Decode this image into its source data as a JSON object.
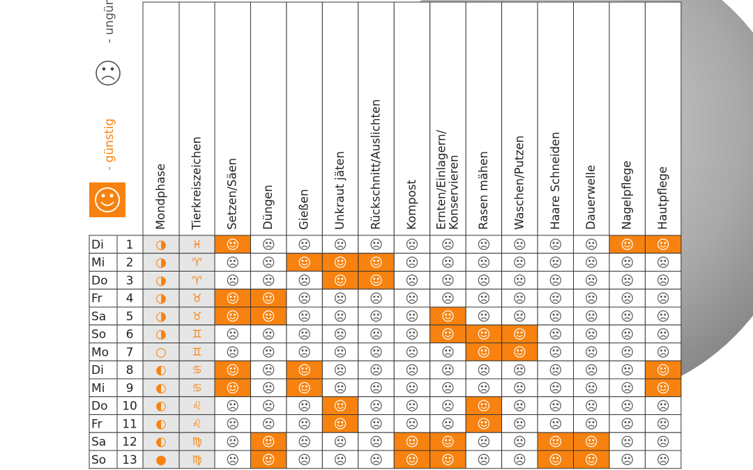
{
  "legend": {
    "favorable": "- günstig",
    "unfavorable": "- ungünstig"
  },
  "headers": [
    "Mondphase",
    "Tierkreiszeichen",
    "Setzen/Säen",
    "Düngen",
    "Gießen",
    "Unkraut jäten",
    "Rückschnitt/Auslichten",
    "Kompost",
    "Ernten/Einlagern/\nKonservieren",
    "Rasen mähen",
    "Waschen/Putzen",
    "Haare Schneiden",
    "Dauerwelle",
    "Nagelpflege",
    "Hautpflege"
  ],
  "rows": [
    {
      "day": "Di",
      "date": "1",
      "moon": "◑",
      "sign": "♓",
      "favorable": [
        true,
        false,
        false,
        false,
        false,
        false,
        false,
        false,
        false,
        false,
        false,
        true,
        true
      ]
    },
    {
      "day": "Mi",
      "date": "2",
      "moon": "◑",
      "sign": "♈",
      "favorable": [
        false,
        false,
        true,
        true,
        true,
        false,
        false,
        false,
        false,
        false,
        false,
        false,
        false
      ]
    },
    {
      "day": "Do",
      "date": "3",
      "moon": "◑",
      "sign": "♈",
      "favorable": [
        false,
        false,
        false,
        true,
        true,
        false,
        false,
        false,
        false,
        false,
        false,
        false,
        false
      ]
    },
    {
      "day": "Fr",
      "date": "4",
      "moon": "◑",
      "sign": "♉",
      "favorable": [
        true,
        true,
        false,
        false,
        false,
        false,
        false,
        false,
        false,
        false,
        false,
        false,
        false
      ]
    },
    {
      "day": "Sa",
      "date": "5",
      "moon": "◑",
      "sign": "♉",
      "favorable": [
        true,
        true,
        false,
        false,
        false,
        false,
        true,
        false,
        false,
        false,
        false,
        false,
        false
      ]
    },
    {
      "day": "So",
      "date": "6",
      "moon": "◑",
      "sign": "♊",
      "favorable": [
        false,
        false,
        false,
        false,
        false,
        false,
        true,
        true,
        true,
        false,
        false,
        false,
        false
      ]
    },
    {
      "day": "Mo",
      "date": "7",
      "moon": "○",
      "sign": "♊",
      "favorable": [
        false,
        false,
        false,
        false,
        false,
        false,
        false,
        true,
        true,
        false,
        false,
        false,
        false
      ]
    },
    {
      "day": "Di",
      "date": "8",
      "moon": "◐",
      "sign": "♋",
      "favorable": [
        true,
        false,
        true,
        false,
        false,
        false,
        false,
        false,
        false,
        false,
        false,
        false,
        true
      ]
    },
    {
      "day": "Mi",
      "date": "9",
      "moon": "◐",
      "sign": "♋",
      "favorable": [
        true,
        false,
        true,
        false,
        false,
        false,
        false,
        false,
        false,
        false,
        false,
        false,
        true
      ]
    },
    {
      "day": "Do",
      "date": "10",
      "moon": "◐",
      "sign": "♌",
      "favorable": [
        false,
        false,
        false,
        true,
        false,
        false,
        false,
        true,
        false,
        false,
        false,
        false,
        false
      ]
    },
    {
      "day": "Fr",
      "date": "11",
      "moon": "◐",
      "sign": "♌",
      "favorable": [
        false,
        false,
        false,
        true,
        false,
        false,
        false,
        true,
        false,
        false,
        false,
        false,
        false
      ]
    },
    {
      "day": "Sa",
      "date": "12",
      "moon": "◐",
      "sign": "♍",
      "favorable": [
        false,
        true,
        false,
        false,
        false,
        true,
        true,
        false,
        false,
        true,
        true,
        false,
        false
      ]
    },
    {
      "day": "So",
      "date": "13",
      "moon": "●",
      "sign": "♍",
      "favorable": [
        false,
        true,
        false,
        false,
        false,
        true,
        true,
        false,
        false,
        true,
        true,
        false,
        false
      ]
    }
  ]
}
